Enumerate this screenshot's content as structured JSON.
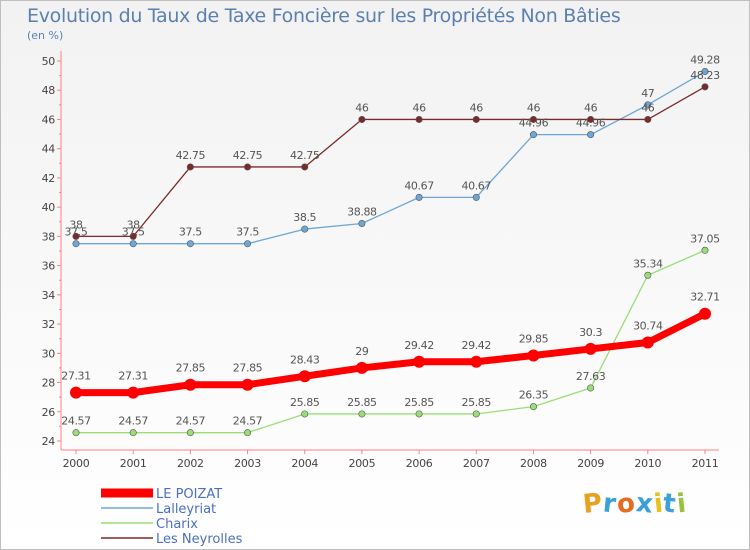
{
  "chart_data": {
    "type": "line",
    "title": "Evolution du Taux de Taxe Foncière sur les Propriétés Non Bâties",
    "subtitle": "(en %)",
    "x": [
      "2000",
      "2001",
      "2002",
      "2003",
      "2004",
      "2005",
      "2006",
      "2007",
      "2008",
      "2009",
      "2010",
      "2011"
    ],
    "ylim": [
      24,
      50
    ],
    "yticks": [
      24,
      26,
      28,
      30,
      32,
      34,
      36,
      38,
      40,
      42,
      44,
      46,
      48,
      50
    ],
    "grid": false,
    "legend_position": "bottom-left",
    "series": [
      {
        "name": "LE POIZAT",
        "color": "#ff0000",
        "values": [
          27.31,
          27.31,
          27.85,
          27.85,
          28.43,
          29,
          29.42,
          29.42,
          29.85,
          30.3,
          30.74,
          32.71
        ],
        "labels": [
          "27.31",
          "27.31",
          "27.85",
          "27.85",
          "28.43",
          "29",
          "29.42",
          "29.42",
          "29.85",
          "30.3",
          "30.74",
          "32.71"
        ]
      },
      {
        "name": "Lalleyriat",
        "color": "#6ea6d6",
        "values": [
          37.5,
          37.5,
          37.5,
          37.5,
          38.5,
          38.88,
          40.67,
          40.67,
          44.96,
          44.96,
          47,
          49.28
        ],
        "labels": [
          "37.5",
          "37.5",
          "37.5",
          "37.5",
          "38.5",
          "38.88",
          "40.67",
          "40.67",
          "44.96",
          "44.96",
          "47",
          "49.28"
        ]
      },
      {
        "name": "Charix",
        "color": "#99dd77",
        "values": [
          24.57,
          24.57,
          24.57,
          24.57,
          25.85,
          25.85,
          25.85,
          25.85,
          26.35,
          27.63,
          35.34,
          37.05
        ],
        "labels": [
          "24.57",
          "24.57",
          "24.57",
          "24.57",
          "25.85",
          "25.85",
          "25.85",
          "25.85",
          "26.35",
          "27.63",
          "35.34",
          "37.05"
        ]
      },
      {
        "name": "Les Neyrolles",
        "color": "#7a2a2a",
        "values": [
          38,
          38,
          42.75,
          42.75,
          42.75,
          46,
          46,
          46,
          46,
          46,
          46,
          48.23
        ],
        "labels": [
          "38",
          "38",
          "42.75",
          "42.75",
          "42.75",
          "46",
          "46",
          "46",
          "46",
          "46",
          "46",
          "48.23"
        ]
      }
    ]
  },
  "logo": {
    "text": "Proxiti"
  }
}
